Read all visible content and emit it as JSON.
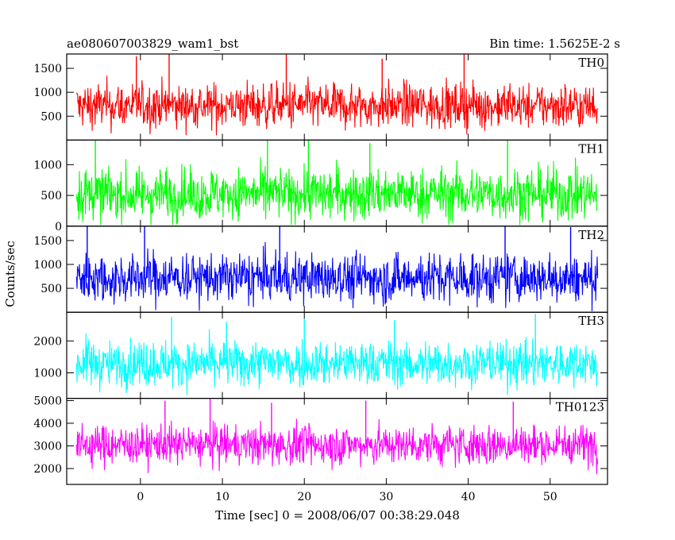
{
  "header": {
    "title": "ae080607003829_wam1_bst",
    "bin_time": "Bin time: 1.5625E-2 s"
  },
  "chart_data": {
    "type": "line",
    "title": "ae080607003829_wam1_bst",
    "xlabel": "Time [sec] 0 = 2008/06/07 00:38:29.048",
    "ylabel": "Counts/sec",
    "xlim": [
      -9,
      57
    ],
    "x_ticks": [
      0,
      10,
      20,
      30,
      40,
      50
    ],
    "x_tick_labels": [
      "0",
      "10",
      "20",
      "30",
      "40",
      "50"
    ],
    "grid": false,
    "panels": [
      {
        "name": "TH0",
        "color": "#ff0000",
        "ylim": [
          0,
          1800
        ],
        "y_ticks": [
          500,
          1000,
          1500
        ],
        "y_tick_labels": [
          "500",
          "1000",
          "1500"
        ],
        "series": {
          "x_start": -7.8,
          "x_end": 55.8,
          "mean": 720,
          "typical_low": 250,
          "typical_high": 1250,
          "min": 100,
          "max": 1800,
          "peaks": [
            {
              "x": 3.5,
              "y": 1800
            },
            {
              "x": 17.8,
              "y": 1800
            },
            {
              "x": 39.5,
              "y": 1800
            },
            {
              "x": -0.5,
              "y": 1750
            },
            {
              "x": 29.5,
              "y": 1700
            }
          ]
        }
      },
      {
        "name": "TH1",
        "color": "#00ff00",
        "ylim": [
          0,
          1400
        ],
        "y_ticks": [
          0,
          500,
          1000
        ],
        "y_tick_labels": [
          "0",
          "500",
          "1000"
        ],
        "series": {
          "x_start": -7.8,
          "x_end": 55.8,
          "mean": 520,
          "typical_low": 120,
          "typical_high": 1000,
          "min": 20,
          "max": 1400,
          "peaks": [
            {
              "x": -5.5,
              "y": 1400
            },
            {
              "x": 15.5,
              "y": 1400
            },
            {
              "x": 20.5,
              "y": 1400
            },
            {
              "x": 44.8,
              "y": 1400
            },
            {
              "x": 28.0,
              "y": 1350
            }
          ]
        }
      },
      {
        "name": "TH2",
        "color": "#0000ff",
        "ylim": [
          0,
          1800
        ],
        "y_ticks": [
          500,
          1000,
          1500
        ],
        "y_tick_labels": [
          "500",
          "1000",
          "1500"
        ],
        "series": {
          "x_start": -7.8,
          "x_end": 55.8,
          "mean": 720,
          "typical_low": 200,
          "typical_high": 1300,
          "min": 20,
          "max": 1800,
          "peaks": [
            {
              "x": -6.5,
              "y": 1800
            },
            {
              "x": 0.5,
              "y": 1800
            },
            {
              "x": 17.0,
              "y": 1800
            },
            {
              "x": 44.5,
              "y": 1800
            },
            {
              "x": 52.5,
              "y": 1780
            }
          ]
        }
      },
      {
        "name": "TH3",
        "color": "#00ffff",
        "ylim": [
          200,
          2900
        ],
        "y_ticks": [
          1000,
          2000
        ],
        "y_tick_labels": [
          "1000",
          "2000"
        ],
        "series": {
          "x_start": -7.8,
          "x_end": 55.8,
          "mean": 1300,
          "typical_low": 600,
          "typical_high": 2100,
          "min": 300,
          "max": 2850,
          "peaks": [
            {
              "x": 3.8,
              "y": 2750
            },
            {
              "x": 20.0,
              "y": 2700
            },
            {
              "x": 48.2,
              "y": 2850
            },
            {
              "x": 31.0,
              "y": 2650
            },
            {
              "x": 10.5,
              "y": 2600
            }
          ]
        }
      },
      {
        "name": "TH0123",
        "color": "#ff00ff",
        "ylim": [
          1300,
          5100
        ],
        "y_ticks": [
          2000,
          3000,
          4000,
          5000
        ],
        "y_tick_labels": [
          "2000",
          "3000",
          "4000",
          "5000"
        ],
        "series": {
          "x_start": -7.8,
          "x_end": 55.8,
          "mean": 3050,
          "typical_low": 2150,
          "typical_high": 4000,
          "min": 1350,
          "max": 5100,
          "peaks": [
            {
              "x": 3.0,
              "y": 5000
            },
            {
              "x": 8.5,
              "y": 5100
            },
            {
              "x": 27.5,
              "y": 5000
            },
            {
              "x": 45.5,
              "y": 4950
            },
            {
              "x": 16.0,
              "y": 4900
            }
          ]
        }
      }
    ]
  }
}
